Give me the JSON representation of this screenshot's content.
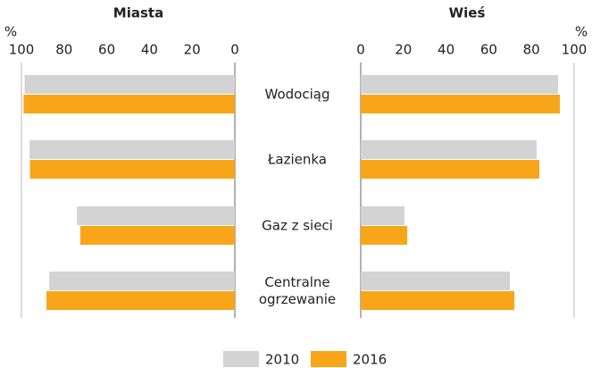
{
  "chart_data": {
    "type": "bar",
    "categories": [
      "Wodociąg",
      "Łazienka",
      "Gaz z sieci",
      "Centralne ogrzewanie"
    ],
    "series": [
      {
        "name": "2010",
        "color": "#d3d3d3"
      },
      {
        "name": "2016",
        "color": "#f9a51a"
      }
    ],
    "panels": [
      {
        "title": "Miasta",
        "unit": "%",
        "reversed": true,
        "xlim": [
          0,
          100
        ],
        "xticks": [
          0,
          20,
          40,
          60,
          80,
          100
        ],
        "series": [
          {
            "values": [
              98.5,
              96.2,
              74,
              87
            ]
          },
          {
            "values": [
              99,
              96,
              72.4,
              88.3
            ]
          }
        ]
      },
      {
        "title": "Wieś",
        "unit": "%",
        "reversed": false,
        "xlim": [
          0,
          100
        ],
        "xticks": [
          0,
          20,
          40,
          60,
          80,
          100
        ],
        "series": [
          {
            "values": [
              92.5,
              82.4,
              20.5,
              69.9
            ]
          },
          {
            "values": [
              93.3,
              83.7,
              21.8,
              72
            ]
          }
        ]
      }
    ]
  }
}
